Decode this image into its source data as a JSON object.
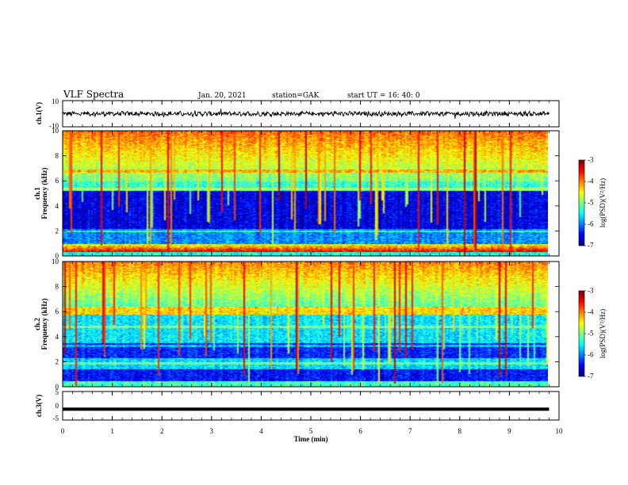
{
  "header": {
    "title": "VLF Spectra",
    "date": "Jan. 20, 2021",
    "station": "station=GAK",
    "start": "start UT =  16: 40: 0"
  },
  "colors": {
    "spectrum_low": "#000040",
    "spectrum_high": "#ff0000",
    "trace": "#000000"
  },
  "chart_data": [
    {
      "type": "line",
      "name": "ch1-waveform",
      "ylabel": "ch.1(V)",
      "ylim": [
        -10,
        10
      ],
      "yticks": [
        "10",
        "-10"
      ],
      "xlim": [
        0,
        10
      ],
      "x_end": 9.8,
      "baseline": 0
    },
    {
      "type": "heatmap",
      "name": "ch1-spectrogram",
      "ylabel": "ch.1\nFrequency (kHz)",
      "ylim": [
        0,
        10
      ],
      "yticks": [
        "0",
        "2",
        "4",
        "6",
        "8",
        "10"
      ],
      "xlim": [
        0,
        10
      ],
      "x_end": 9.8,
      "colorbar": {
        "label": "log(PSD)(V²/Hz)",
        "range": [
          -7,
          -3
        ],
        "ticks": [
          "-3",
          "-4",
          "-5",
          "-6",
          "-7"
        ]
      }
    },
    {
      "type": "heatmap",
      "name": "ch2-spectrogram",
      "ylabel": "ch.2\nFrequency (kHz)",
      "ylim": [
        0,
        10
      ],
      "yticks": [
        "0",
        "2",
        "4",
        "6",
        "8",
        "10"
      ],
      "xlim": [
        0,
        10
      ],
      "x_end": 9.8,
      "colorbar": {
        "label": "log(PSD)(V²/Hz)",
        "range": [
          -7,
          -3
        ],
        "ticks": [
          "-3",
          "-4",
          "-5",
          "-6",
          "-7"
        ]
      }
    },
    {
      "type": "line",
      "name": "ch3-waveform",
      "ylabel": "ch.3(V)",
      "ylim": [
        -5,
        5
      ],
      "yticks": [
        "5",
        "0",
        "-5"
      ],
      "xlim": [
        0,
        10
      ],
      "x_end": 9.8,
      "baseline": -1.2
    }
  ],
  "xaxis": {
    "label": "Time (min)",
    "ticks": [
      "0",
      "1",
      "2",
      "3",
      "4",
      "5",
      "6",
      "7",
      "8",
      "9",
      "10"
    ]
  }
}
